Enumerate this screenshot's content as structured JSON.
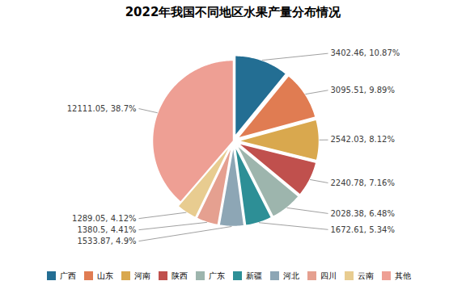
{
  "chart_data": {
    "type": "pie",
    "title": "2022年我国不同地区水果产量分布情况",
    "categories": [
      "广西",
      "山东",
      "河南",
      "陕西",
      "广东",
      "新疆",
      "河北",
      "四川",
      "云南",
      "其他"
    ],
    "values": [
      3402.46,
      3095.51,
      2542.03,
      2240.78,
      2028.38,
      1672.61,
      1533.87,
      1380.5,
      1289.05,
      12111.05
    ],
    "colors": [
      "#236e93",
      "#e07c52",
      "#d9a84e",
      "#c0504d",
      "#9db5ad",
      "#2d8f96",
      "#8da6b5",
      "#e5a090",
      "#e8cc90",
      "#ee9f94"
    ],
    "data_labels": true,
    "value_labels": [
      "3402.46, 10.87%",
      "3095.51, 9.89%",
      "2542.03, 8.12%",
      "2240.78, 7.16%",
      "2028.38, 6.48%",
      "1672.61, 5.34%",
      "1533.87, 4.9%",
      "1380.5, 4.41%",
      "1289.05, 4.12%",
      "12111.05, 38.7%"
    ],
    "legend": "bottom"
  }
}
